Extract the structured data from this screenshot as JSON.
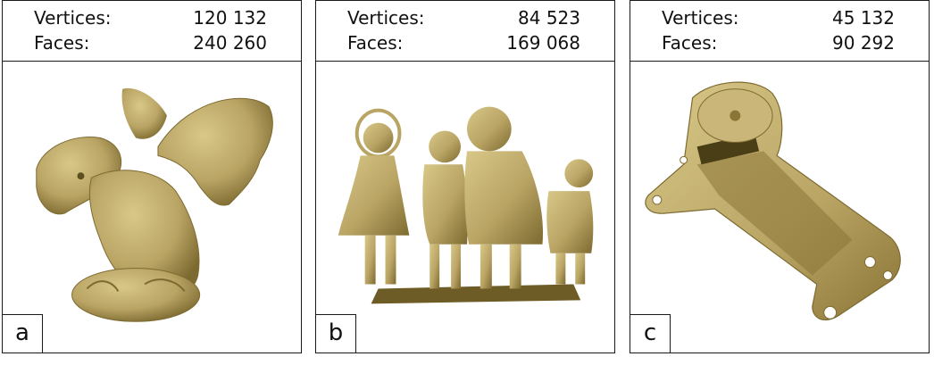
{
  "panels": [
    {
      "tag": "a",
      "vertices_label": "Vertices:",
      "vertices": "120 132",
      "faces_label": "Faces:",
      "faces": "240 260",
      "model_icon": "gargoyle-model-icon"
    },
    {
      "tag": "b",
      "vertices_label": "Vertices:",
      "vertices": "84 523",
      "faces_label": "Faces:",
      "faces": "169 068",
      "model_icon": "children-statue-model-icon"
    },
    {
      "tag": "c",
      "vertices_label": "Vertices:",
      "vertices": "45 132",
      "faces_label": "Faces:",
      "faces": "90 292",
      "model_icon": "bracket-part-model-icon"
    }
  ],
  "colors": {
    "model_fill": "#b9a464",
    "model_shade": "#8a7436",
    "model_light": "#d8c888",
    "border": "#1a1a1a"
  }
}
